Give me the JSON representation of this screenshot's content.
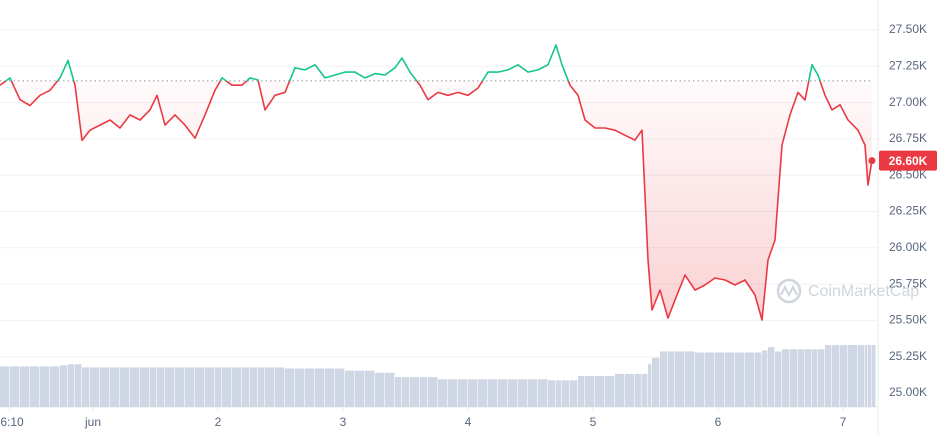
{
  "chart_data": {
    "type": "line",
    "watermark": "CoinMarketCap",
    "x": [
      0.256,
      0.336,
      0.416,
      0.496,
      0.576,
      0.656,
      0.736,
      0.8,
      0.856,
      0.912,
      0.976,
      1.056,
      1.136,
      1.216,
      1.296,
      1.376,
      1.456,
      1.512,
      1.576,
      1.656,
      1.736,
      1.816,
      1.896,
      1.976,
      2.032,
      2.112,
      2.192,
      2.256,
      2.32,
      2.376,
      2.456,
      2.536,
      2.616,
      2.696,
      2.776,
      2.856,
      2.936,
      3.016,
      3.096,
      3.176,
      3.256,
      3.336,
      3.416,
      3.472,
      3.536,
      3.616,
      3.68,
      3.76,
      3.84,
      3.92,
      4.0,
      4.08,
      4.16,
      4.24,
      4.32,
      4.4,
      4.48,
      4.56,
      4.64,
      4.704,
      4.752,
      4.816,
      4.88,
      4.936,
      5.016,
      5.096,
      5.176,
      5.256,
      5.336,
      5.392,
      5.44,
      5.472,
      5.536,
      5.6,
      5.656,
      5.736,
      5.816,
      5.896,
      5.976,
      6.056,
      6.136,
      6.216,
      6.296,
      6.352,
      6.4,
      6.456,
      6.512,
      6.576,
      6.64,
      6.696,
      6.752,
      6.8,
      6.856,
      6.912,
      6.976,
      7.04,
      7.12,
      7.176,
      7.2,
      7.232
    ],
    "series": [
      {
        "name": "Price",
        "color_up": "#16c784",
        "color_down": "#ea3943",
        "values": [
          27120,
          27170,
          27020,
          26980,
          27050,
          27085,
          27170,
          27290,
          27120,
          26740,
          26810,
          26845,
          26880,
          26825,
          26915,
          26880,
          26950,
          27050,
          26845,
          26915,
          26845,
          26755,
          26915,
          27085,
          27170,
          27120,
          27120,
          27170,
          27156,
          26950,
          27050,
          27070,
          27240,
          27225,
          27260,
          27170,
          27190,
          27210,
          27210,
          27170,
          27200,
          27190,
          27240,
          27307,
          27210,
          27120,
          27020,
          27070,
          27050,
          27070,
          27050,
          27100,
          27210,
          27210,
          27225,
          27260,
          27210,
          27225,
          27260,
          27397,
          27260,
          27120,
          27050,
          26880,
          26825,
          26825,
          26810,
          26775,
          26742,
          26810,
          25916,
          25572,
          25709,
          25516,
          25640,
          25813,
          25709,
          25744,
          25792,
          25778,
          25744,
          25778,
          25675,
          25503,
          25916,
          26054,
          26707,
          26915,
          27070,
          27018,
          27260,
          27190,
          27050,
          26950,
          26985,
          26880,
          26810,
          26707,
          26432,
          26605
        ]
      },
      {
        "name": "Volume",
        "color": "#cfd6e4",
        "values": [
          38,
          38,
          38,
          38,
          38,
          38,
          39,
          40,
          40,
          37,
          37,
          37,
          37,
          37,
          37,
          37,
          37,
          37,
          37,
          37,
          37,
          37,
          37,
          37,
          37,
          37,
          37,
          37,
          37,
          37,
          37,
          36,
          36,
          36,
          36,
          36,
          36,
          34,
          34,
          34,
          32,
          32,
          28,
          28,
          28,
          28,
          28,
          26,
          26,
          26,
          26,
          26,
          26,
          26,
          26,
          26,
          26,
          26,
          25,
          25,
          25,
          25,
          29,
          29,
          29,
          29,
          31,
          31,
          31,
          31,
          40,
          46,
          52,
          52,
          52,
          52,
          51,
          51,
          51,
          51,
          51,
          51,
          51,
          53,
          56,
          52,
          54,
          54,
          54,
          54,
          54,
          54,
          58,
          58,
          58,
          58,
          58,
          58,
          58,
          58
        ]
      }
    ],
    "reference_line": 27150,
    "current_price": {
      "value": 26600,
      "label": "26.60K"
    },
    "xlim": [
      0.256,
      7.232
    ],
    "ylim": [
      25000,
      27500
    ],
    "xticks": [
      {
        "value": 0.336,
        "label": "6:10"
      },
      {
        "value": 1,
        "label": "jun"
      },
      2,
      3,
      4,
      5,
      6,
      7
    ],
    "yticks": [
      {
        "value": 25000,
        "label": "25.00K"
      },
      {
        "value": 25250,
        "label": "25.25K"
      },
      {
        "value": 25500,
        "label": "25.50K"
      },
      {
        "value": 25750,
        "label": "25.75K"
      },
      {
        "value": 26000,
        "label": "26.00K"
      },
      {
        "value": 26250,
        "label": "26.25K"
      },
      {
        "value": 26500,
        "label": "26.50K"
      },
      {
        "value": 26750,
        "label": "26.75K"
      },
      {
        "value": 27000,
        "label": "27.00K"
      },
      {
        "value": 27250,
        "label": "27.25K"
      },
      {
        "value": 27500,
        "label": "27.50K"
      }
    ],
    "grid": true
  }
}
